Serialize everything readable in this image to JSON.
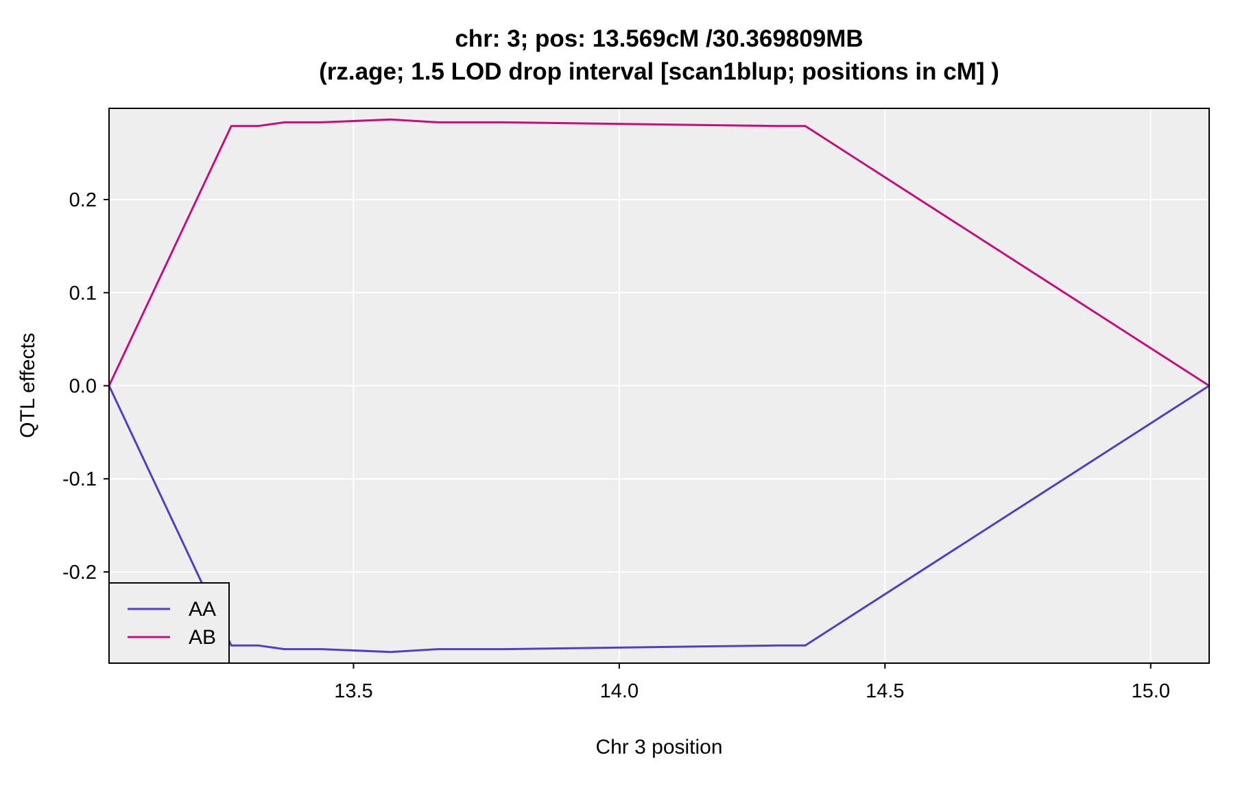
{
  "chart_data": {
    "type": "line",
    "title": "chr: 3; pos: 13.569cM /30.369809MB",
    "subtitle": "(rz.age; 1.5 LOD drop interval [scan1blup; positions in cM] )",
    "xlabel": "Chr 3 position",
    "ylabel": "QTL effects",
    "xlim": [
      13.04,
      15.11
    ],
    "ylim": [
      -0.298,
      0.298
    ],
    "x_ticks": [
      13.5,
      14.0,
      14.5,
      15.0
    ],
    "x_tick_labels": [
      "13.5",
      "14.0",
      "14.5",
      "15.0"
    ],
    "y_ticks": [
      -0.2,
      -0.1,
      0.0,
      0.1,
      0.2
    ],
    "y_tick_labels": [
      "-0.2",
      "-0.1",
      "0.0",
      "0.1",
      "0.2"
    ],
    "grid": true,
    "legend_position": "bottom-left",
    "series": [
      {
        "name": "AA",
        "color": "#5040c0",
        "x": [
          13.04,
          13.27,
          13.32,
          13.37,
          13.44,
          13.57,
          13.66,
          13.78,
          14.3,
          14.35,
          15.11
        ],
        "y": [
          0.0,
          -0.279,
          -0.279,
          -0.283,
          -0.283,
          -0.286,
          -0.283,
          -0.283,
          -0.279,
          -0.279,
          0.0
        ]
      },
      {
        "name": "AB",
        "color": "#c0107f",
        "x": [
          13.04,
          13.27,
          13.32,
          13.37,
          13.44,
          13.57,
          13.66,
          13.78,
          14.3,
          14.35,
          15.11
        ],
        "y": [
          0.0,
          0.279,
          0.279,
          0.283,
          0.283,
          0.286,
          0.283,
          0.283,
          0.279,
          0.279,
          0.0
        ]
      }
    ]
  },
  "colors": {
    "panel_background": "#eeeeee",
    "grid": "#ffffff",
    "frame": "#000000"
  }
}
